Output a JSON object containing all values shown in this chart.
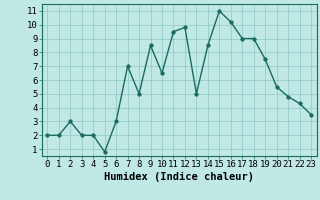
{
  "x": [
    0,
    1,
    2,
    3,
    4,
    5,
    6,
    7,
    8,
    9,
    10,
    11,
    12,
    13,
    14,
    15,
    16,
    17,
    18,
    19,
    20,
    21,
    22,
    23
  ],
  "y": [
    2,
    2,
    3,
    2,
    2,
    0.8,
    3,
    7,
    5,
    8.5,
    6.5,
    9.5,
    9.8,
    5,
    8.5,
    11,
    10.2,
    9,
    9,
    7.5,
    5.5,
    4.8,
    4.3,
    3.5
  ],
  "line_color": "#1a6b5e",
  "marker_color": "#1a6b5e",
  "bg_color": "#c0e8e4",
  "grid_color": "#8ec8c4",
  "xlabel": "Humidex (Indice chaleur)",
  "xlim": [
    -0.5,
    23.5
  ],
  "ylim": [
    0.5,
    11.5
  ],
  "yticks": [
    1,
    2,
    3,
    4,
    5,
    6,
    7,
    8,
    9,
    10,
    11
  ],
  "xticks": [
    0,
    1,
    2,
    3,
    4,
    5,
    6,
    7,
    8,
    9,
    10,
    11,
    12,
    13,
    14,
    15,
    16,
    17,
    18,
    19,
    20,
    21,
    22,
    23
  ],
  "xlabel_fontsize": 7.5,
  "tick_fontsize": 6.5,
  "line_width": 1.0,
  "marker_size": 2.5
}
